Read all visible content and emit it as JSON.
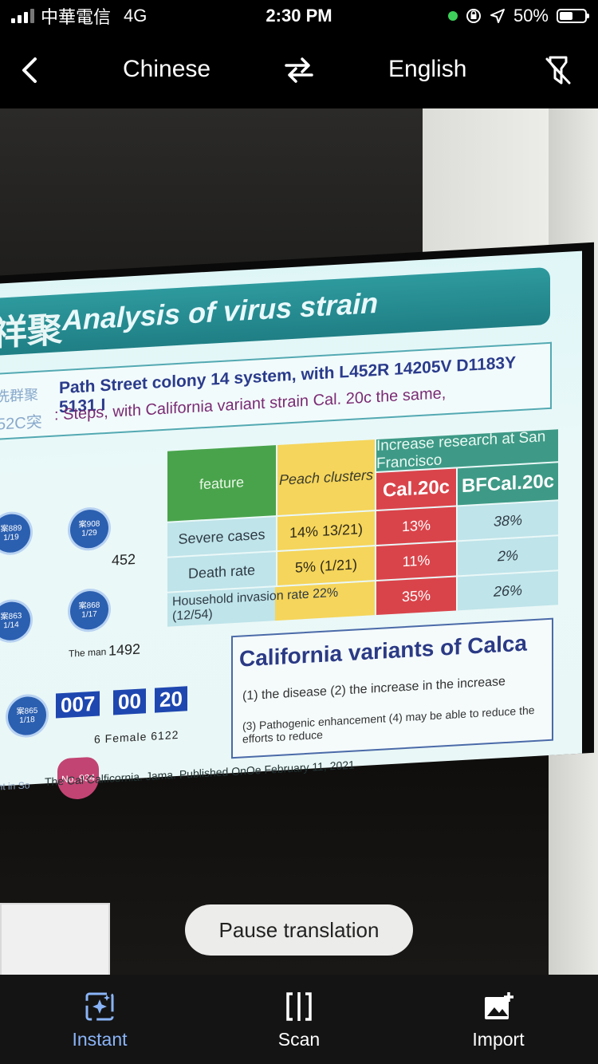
{
  "status_bar": {
    "carrier": "中華電信",
    "network": "4G",
    "time": "2:30 PM",
    "battery": "50%",
    "indicator_color": "#3ecf5a"
  },
  "top_bar": {
    "source_language": "Chinese",
    "target_language": "English",
    "icons": [
      "back-icon",
      "swap-languages-icon",
      "flash-off-icon"
    ]
  },
  "slide": {
    "title_cjk": "祥聚",
    "title": "Analysis  of  virus  strain",
    "subtitle_ghost_1": "洗群聚",
    "subtitle_ghost_2": "52C突",
    "subtitle_line1": "Path Street colony 14 system, with L452R 14205V D1183Y 5131 I",
    "subtitle_line2": ": Steps, with California variant strain Cal. 20c the same,",
    "table": {
      "header_feature": "feature",
      "header_peach": "Peach clusters",
      "header_research": "Increase research at San Francisco",
      "header_cal": "Cal.20c",
      "header_bf": "BFCal.20c",
      "rows": [
        {
          "label": "Severe cases",
          "peach": "14%  13/21)",
          "cal": "13%",
          "bf": "38%"
        },
        {
          "label": "Death rate",
          "peach": "5%  (1/21)",
          "cal": "11%",
          "bf": "2%"
        },
        {
          "label": "Household invasion rate 22% (12/54)",
          "peach": "",
          "cal": "35%",
          "bf": "26%"
        }
      ]
    },
    "california_box": {
      "title": "California  variants  of  Calca",
      "line1": "(1) the disease (2) the increase in the increase",
      "line2": "(3) Pathogenic enhancement (4) may be able to reduce the efforts to reduce"
    },
    "cluster": {
      "nodes": [
        "案889 1/19",
        "案908 1/29",
        "案863 1/14",
        "案868 1/17",
        "案865 1/18"
      ],
      "label_452": "452",
      "label_1492": "1492",
      "the_man": "The man",
      "blue_numbers": [
        "007",
        "00",
        "20"
      ],
      "female_line": "6  Female  6122",
      "pink_node": "No. 934"
    },
    "footer_ghost": "ant in So",
    "footer": "The Cal Calficornia. Jama. Published OnOe February 11, 2021"
  },
  "pause_button": "Pause translation",
  "bottom_tabs": [
    {
      "label": "Instant",
      "icon": "instant-icon",
      "active": true
    },
    {
      "label": "Scan",
      "icon": "scan-icon",
      "active": false
    },
    {
      "label": "Import",
      "icon": "import-icon",
      "active": false
    }
  ],
  "accent_color": "#8ab4f8"
}
